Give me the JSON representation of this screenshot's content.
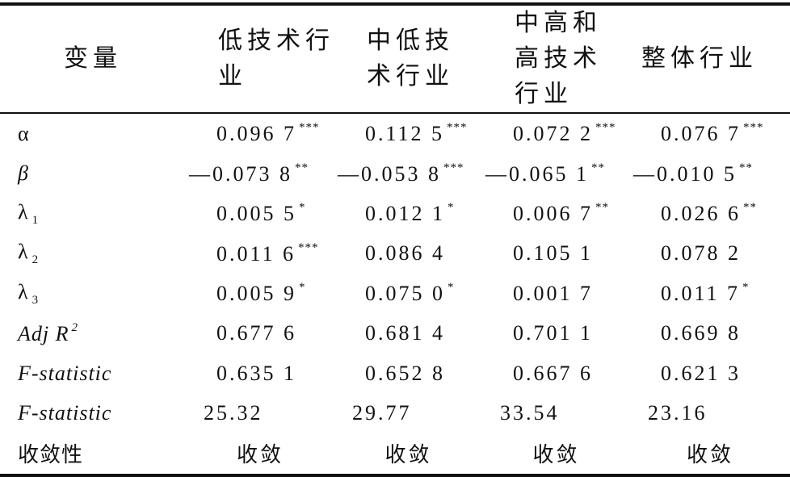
{
  "table": {
    "header": [
      "变量",
      "低技术行业",
      "中低技术行业",
      "中高和高技术行业",
      "整体行业"
    ],
    "rows": [
      {
        "label": {
          "text": "α"
        },
        "cells": [
          {
            "text": "0.096 7",
            "sup": "***"
          },
          {
            "text": "0.112 5",
            "sup": "***"
          },
          {
            "text": "0.072 2",
            "sup": "***"
          },
          {
            "text": "0.076 7",
            "sup": "***"
          }
        ]
      },
      {
        "label": {
          "text": "β"
        },
        "cells": [
          {
            "text": "—0.073 8",
            "sup": "**"
          },
          {
            "text": "—0.053 8",
            "sup": "***"
          },
          {
            "text": "—0.065 1",
            "sup": "**"
          },
          {
            "text": "—0.010 5",
            "sup": "**"
          }
        ]
      },
      {
        "label": {
          "text": "λ",
          "sub": "1"
        },
        "cells": [
          {
            "text": "0.005 5",
            "sup": "*"
          },
          {
            "text": "0.012 1",
            "sup": "*"
          },
          {
            "text": "0.006 7",
            "sup": "**"
          },
          {
            "text": "0.026 6",
            "sup": "**"
          }
        ]
      },
      {
        "label": {
          "text": "λ",
          "sub": "2"
        },
        "cells": [
          {
            "text": "0.011 6",
            "sup": "***"
          },
          {
            "text": "0.086 4"
          },
          {
            "text": "0.105 1"
          },
          {
            "text": "0.078 2"
          }
        ]
      },
      {
        "label": {
          "text": "λ",
          "sub": "3"
        },
        "cells": [
          {
            "text": "0.005 9",
            "sup": "*"
          },
          {
            "text": "0.075 0",
            "sup": "*"
          },
          {
            "text": "0.001 7"
          },
          {
            "text": "0.011 7",
            "sup": "*"
          }
        ]
      },
      {
        "label": {
          "text": "Adj R",
          "sup": "2"
        },
        "cells": [
          {
            "text": "0.677 6"
          },
          {
            "text": "0.681 4"
          },
          {
            "text": "0.701 1"
          },
          {
            "text": "0.669 8"
          }
        ]
      },
      {
        "label": {
          "text": "F-statistic"
        },
        "cells": [
          {
            "text": "0.635 1"
          },
          {
            "text": "0.652 8"
          },
          {
            "text": "0.667 6"
          },
          {
            "text": "0.621 3"
          }
        ]
      },
      {
        "label": {
          "text": "F-statistic"
        },
        "cells": [
          {
            "text": "25.32"
          },
          {
            "text": "29.77"
          },
          {
            "text": "33.54"
          },
          {
            "text": "23.16"
          }
        ]
      },
      {
        "label": {
          "text": "收敛性"
        },
        "cells": [
          {
            "text": "收敛"
          },
          {
            "text": "收敛"
          },
          {
            "text": "收敛"
          },
          {
            "text": "收敛"
          }
        ]
      }
    ]
  }
}
